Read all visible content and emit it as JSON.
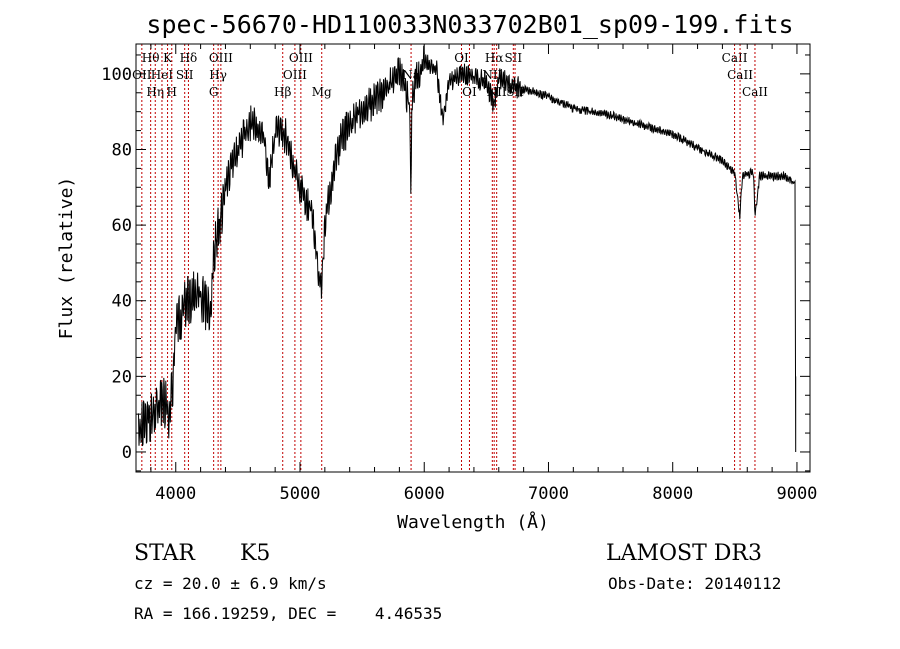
{
  "chart_data": {
    "type": "line",
    "title": "spec-56670-HD110033N033702B01_sp09-199.fits",
    "xlabel": "Wavelength (Å)",
    "ylabel": "Flux (relative)",
    "xlim": [
      3680,
      9105
    ],
    "ylim": [
      -5.3,
      107.9
    ],
    "xticks": [
      4000,
      5000,
      6000,
      7000,
      8000,
      9000
    ],
    "xtick_labels": [
      "4000",
      "5000",
      "6000",
      "7000",
      "8000",
      "9000"
    ],
    "yticks": [
      0,
      20,
      40,
      60,
      80,
      100
    ],
    "ytick_labels": [
      "0",
      "20",
      "40",
      "60",
      "80",
      "100"
    ],
    "grid": false,
    "series": [
      {
        "name": "spectrum",
        "color": "#000000",
        "x": [
          3700,
          3800,
          3900,
          3950,
          3980,
          4000,
          4050,
          4100,
          4200,
          4280,
          4300,
          4350,
          4400,
          4500,
          4600,
          4700,
          4750,
          4800,
          4850,
          4900,
          4950,
          5000,
          5100,
          5170,
          5200,
          5300,
          5400,
          5500,
          5600,
          5700,
          5800,
          5885,
          5893,
          5900,
          6000,
          6100,
          6150,
          6200,
          6300,
          6400,
          6500,
          6560,
          6600,
          6700,
          6800,
          7000,
          7200,
          7500,
          8000,
          8400,
          8500,
          8540,
          8560,
          8650,
          8662,
          8700,
          8900,
          8985
        ],
        "y": [
          5,
          10,
          14,
          10,
          20,
          34,
          37,
          40,
          42,
          36,
          50,
          60,
          70,
          80,
          87,
          85,
          72,
          84,
          86,
          82,
          76,
          70,
          63,
          42,
          60,
          80,
          87,
          90,
          93,
          96,
          100,
          92,
          60,
          95,
          103,
          101,
          88,
          98,
          100,
          99,
          98,
          92,
          99,
          97,
          96,
          94,
          91,
          89,
          84,
          77,
          74,
          62,
          73,
          74,
          62,
          73,
          73,
          71
        ]
      }
    ],
    "lines": [
      {
        "w": 3727,
        "label": "OII",
        "row": 2
      },
      {
        "w": 3798,
        "label": "Hθ",
        "row": 1
      },
      {
        "w": 3835,
        "label": "Hη",
        "row": 3
      },
      {
        "w": 3889,
        "label": "HeI",
        "row": 2
      },
      {
        "w": 3934,
        "label": "K",
        "row": 1
      },
      {
        "w": 3968,
        "label": "H",
        "row": 3
      },
      {
        "w": 4072,
        "label": "SII",
        "row": 2
      },
      {
        "w": 4102,
        "label": "Hδ",
        "row": 1
      },
      {
        "w": 4305,
        "label": "G",
        "row": 3
      },
      {
        "w": 4341,
        "label": "Hγ",
        "row": 2
      },
      {
        "w": 4363,
        "label": "OIII",
        "row": 1
      },
      {
        "w": 4861,
        "label": "Hβ",
        "row": 3
      },
      {
        "w": 4959,
        "label": "OIII",
        "row": 2
      },
      {
        "w": 5007,
        "label": "OIII",
        "row": 1
      },
      {
        "w": 5175,
        "label": "Mg",
        "row": 3
      },
      {
        "w": 5894,
        "label": "Na",
        "row": 2
      },
      {
        "w": 6300,
        "label": "OI",
        "row": 1
      },
      {
        "w": 6364,
        "label": "OI",
        "row": 3
      },
      {
        "w": 6548,
        "label": "NII",
        "row": 2
      },
      {
        "w": 6563,
        "label": "Hα",
        "row": 1
      },
      {
        "w": 6583,
        "label": "NII",
        "row": 3
      },
      {
        "w": 6717,
        "label": "SII",
        "row": 1
      },
      {
        "w": 6731,
        "label": "SII",
        "row": 3
      },
      {
        "w": 8498,
        "label": "CaII",
        "row": 1
      },
      {
        "w": 8542,
        "label": "CaII",
        "row": 2
      },
      {
        "w": 8662,
        "label": "CaII",
        "row": 3
      }
    ]
  },
  "footer": {
    "object_class": "STAR",
    "subclass": "K5",
    "survey": "LAMOST DR3",
    "redshift": "cz = 20.0 ± 6.9 km/s",
    "obs_date": "Obs-Date: 20140112",
    "coords": "RA = 166.19259, DEC =    4.46535"
  }
}
